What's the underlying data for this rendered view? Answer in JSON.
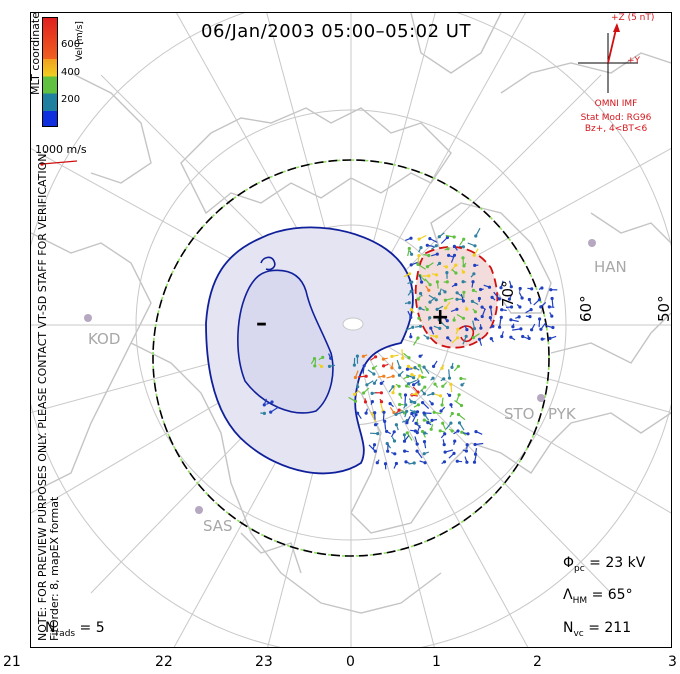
{
  "title": "06/Jan/2003 05:00–05:02 UT",
  "colorbar": {
    "label": "Vel [m/s]",
    "ticks": [
      "600",
      "400",
      "200"
    ],
    "colors": [
      "#2040c0",
      "#3080a0",
      "#60c040",
      "#f0d020",
      "#f08020",
      "#e02020"
    ]
  },
  "coordinates_label": "MLT coordinates",
  "reference_vector_label": "1000 m/s",
  "note_line1": "NOTE: FOR PREVIEW PURPOSES ONLY. PLEASE CONTACT VT-SD STAFF FOR VERIFICATION.",
  "note_line2": "FitOrder: 8,  mapEX format",
  "imf": {
    "z_label": "+Z (5 nT)",
    "y_label": "+Y",
    "source": "OMNI IMF",
    "stat_model": "Stat Mod: RG96",
    "condition": "Bz+, 4<BT<6"
  },
  "stations": [
    "HAN",
    "KOD",
    "STO",
    "PYK",
    "SAS"
  ],
  "mlat_labels": [
    "70°",
    "60°",
    "50°"
  ],
  "potential_marks": {
    "minus": "–",
    "plus": "+"
  },
  "stats": {
    "phi_sym": "Φ",
    "phi_sub": "pc",
    "phi_val": " = 23 kV",
    "lambda_sym": "Λ",
    "lambda_sub": "HM",
    "lambda_val": " = 65°",
    "nvc_sym": "N",
    "nvc_sub": "vc",
    "nvc_val": " = 211",
    "nrads_sym": "N",
    "nrads_sub": "rads",
    "nrads_val": " = 5"
  },
  "mlt_ticks": [
    "21",
    "22",
    "23",
    "0",
    "1",
    "2",
    "3"
  ]
}
